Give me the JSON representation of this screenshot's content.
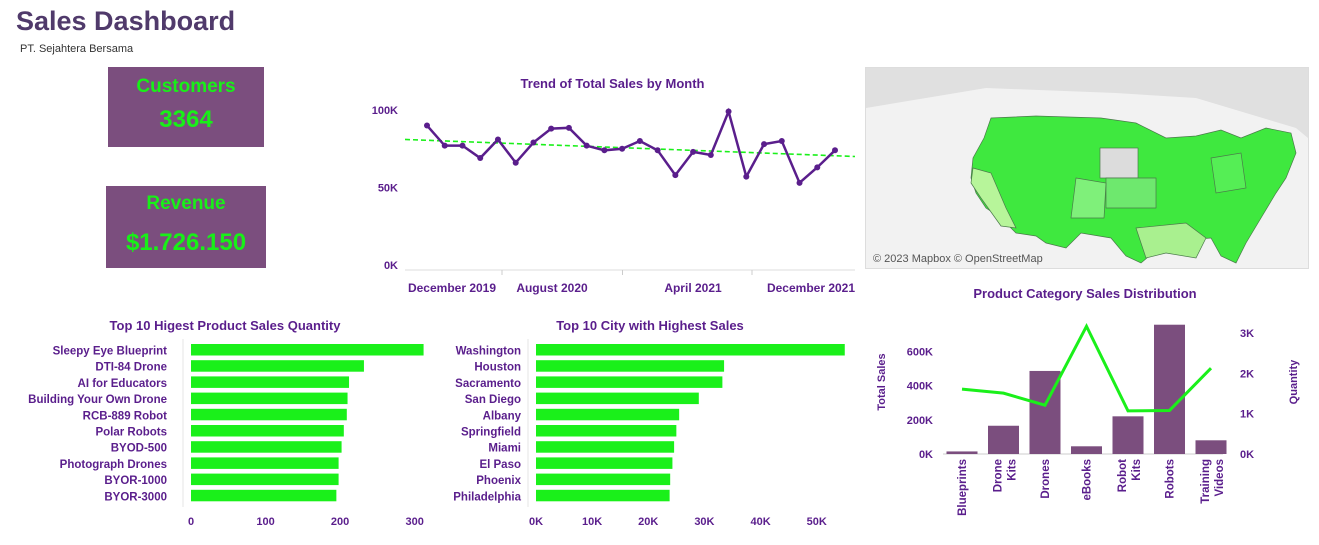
{
  "header": {
    "title": "Sales Dashboard",
    "subtitle": "PT. Sejahtera Bersama"
  },
  "kpis": {
    "customers": {
      "label": "Customers",
      "value": "3364"
    },
    "revenue": {
      "label": "Revenue",
      "value": "$1.726.150"
    }
  },
  "map": {
    "credit": "© 2023 Mapbox © OpenStreetMap"
  },
  "colors": {
    "primary": "#5a1e8c",
    "accent": "#1af01a",
    "bar_purple": "#7b4e7e",
    "kpi_bg": "#7b4e7e"
  },
  "chart_data": [
    {
      "type": "line",
      "title": "Trend of Total Sales by Month",
      "x_ticks": [
        "December 2019",
        "August 2020",
        "April 2021",
        "December 2021"
      ],
      "y_ticks": [
        "100K",
        "50K",
        "0K"
      ],
      "ylim": [
        0,
        100000
      ],
      "values": [
        90000,
        77000,
        77000,
        69000,
        81000,
        66000,
        79000,
        88000,
        88500,
        77000,
        74000,
        75000,
        80000,
        74000,
        58000,
        73000,
        71000,
        99000,
        57000,
        78000,
        80000,
        53000,
        63000,
        74000
      ],
      "trendline": {
        "start": 81000,
        "end": 70000
      }
    },
    {
      "type": "bar",
      "title": "Top 10 Higest Product Sales Quantity",
      "categories": [
        "Sleepy Eye Blueprint",
        "DTI-84 Drone",
        "AI for Educators",
        "Building Your Own Drone",
        "RCB-889 Robot",
        "Polar Robots",
        "BYOD-500",
        "Photograph Drones",
        "BYOR-1000",
        "BYOR-3000"
      ],
      "values": [
        312,
        232,
        212,
        210,
        209,
        205,
        202,
        198,
        198,
        195
      ],
      "x_ticks": [
        "0",
        "100",
        "200",
        "300"
      ],
      "xlim": [
        0,
        330
      ]
    },
    {
      "type": "bar",
      "title": "Top 10 City with Highest Sales",
      "categories": [
        "Washington",
        "Houston",
        "Sacramento",
        "San Diego",
        "Albany",
        "Springfield",
        "Miami",
        "El Paso",
        "Phoenix",
        "Philadelphia"
      ],
      "values": [
        55000,
        33500,
        33200,
        29000,
        25500,
        25000,
        24600,
        24300,
        23900,
        23800
      ],
      "x_ticks": [
        "0K",
        "10K",
        "20K",
        "30K",
        "40K",
        "50K"
      ],
      "xlim": [
        0,
        57000
      ]
    },
    {
      "type": "bar",
      "title": "Product Category Sales Distribution",
      "categories": [
        "Blueprints",
        "Drone Kits",
        "Drones",
        "eBooks",
        "Robot Kits",
        "Robots",
        "Training Videos"
      ],
      "values": [
        15000,
        165000,
        485000,
        45000,
        220000,
        755000,
        80000
      ],
      "line_values": [
        1610,
        1510,
        1210,
        3170,
        1070,
        1080,
        2130
      ],
      "ylabel": "Total Sales",
      "y2label": "Quantity",
      "y_ticks": [
        "600K",
        "400K",
        "200K",
        "0K"
      ],
      "y2_ticks": [
        "3K",
        "2K",
        "1K",
        "0K"
      ],
      "ylim": [
        0,
        800000
      ],
      "y2lim": [
        0,
        3400
      ]
    }
  ]
}
